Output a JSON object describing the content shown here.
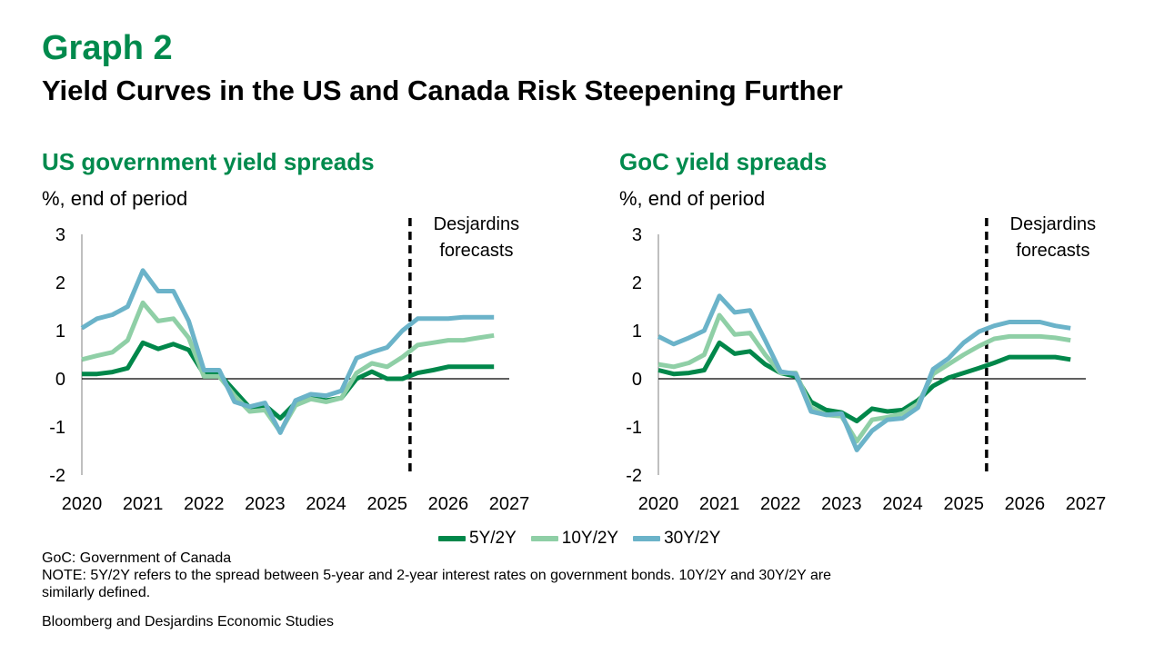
{
  "header": {
    "graph_label": "Graph 2",
    "title": "Yield Curves in the US and Canada Risk Steepening Further"
  },
  "panels": [
    {
      "title": "US government yield spreads",
      "unit": "%, end of period"
    },
    {
      "title": "GoC yield spreads",
      "unit": "%, end of period"
    }
  ],
  "legend": [
    {
      "label": "5Y/2Y",
      "color": "#00874a"
    },
    {
      "label": "10Y/2Y",
      "color": "#8fcfa6"
    },
    {
      "label": "30Y/2Y",
      "color": "#6bb3c9"
    }
  ],
  "footnotes": {
    "abbrev": "GoC: Government of Canada",
    "note": "NOTE: 5Y/2Y refers to the spread between 5-year and 2-year interest rates on government bonds. 10Y/2Y and 30Y/2Y are similarly defined.",
    "source": "Bloomberg and Desjardins Economic Studies"
  },
  "chart_data": [
    {
      "type": "line",
      "title": "US government yield spreads",
      "ylabel": "%, end of period",
      "xlim": [
        2020,
        2027
      ],
      "ylim": [
        -2,
        3
      ],
      "x_ticks": [
        "2020",
        "2021",
        "2022",
        "2023",
        "2024",
        "2025",
        "2026",
        "2027"
      ],
      "y_ticks": [
        "3",
        "2",
        "1",
        "0",
        "-1",
        "-2"
      ],
      "forecast_start": 2025.375,
      "annotation": [
        "Desjardins",
        "forecasts"
      ],
      "x": [
        2020.0,
        2020.25,
        2020.5,
        2020.75,
        2021.0,
        2021.25,
        2021.5,
        2021.75,
        2022.0,
        2022.25,
        2022.5,
        2022.75,
        2023.0,
        2023.25,
        2023.5,
        2023.75,
        2024.0,
        2024.25,
        2024.5,
        2024.75,
        2025.0,
        2025.25,
        2025.5,
        2025.75,
        2026.0,
        2026.25,
        2026.5,
        2026.75
      ],
      "series": [
        {
          "name": "5Y/2Y",
          "color": "#00874a",
          "values": [
            0.1,
            0.1,
            0.14,
            0.22,
            0.75,
            0.62,
            0.72,
            0.6,
            0.1,
            0.1,
            -0.25,
            -0.6,
            -0.55,
            -0.82,
            -0.5,
            -0.4,
            -0.45,
            -0.4,
            0.0,
            0.15,
            0.0,
            0.0,
            0.12,
            0.18,
            0.25,
            0.25,
            0.25,
            0.25
          ]
        },
        {
          "name": "10Y/2Y",
          "color": "#8fcfa6",
          "values": [
            0.4,
            0.48,
            0.55,
            0.8,
            1.58,
            1.2,
            1.25,
            0.85,
            0.05,
            0.05,
            -0.35,
            -0.68,
            -0.65,
            -1.1,
            -0.55,
            -0.42,
            -0.48,
            -0.4,
            0.12,
            0.32,
            0.25,
            0.45,
            0.7,
            0.75,
            0.8,
            0.8,
            0.85,
            0.9
          ]
        },
        {
          "name": "30Y/2Y",
          "color": "#6bb3c9",
          "values": [
            1.05,
            1.25,
            1.33,
            1.5,
            2.25,
            1.82,
            1.82,
            1.2,
            0.18,
            0.18,
            -0.48,
            -0.58,
            -0.5,
            -1.12,
            -0.45,
            -0.32,
            -0.35,
            -0.25,
            0.43,
            0.55,
            0.65,
            1.0,
            1.25,
            1.25,
            1.25,
            1.28,
            1.28,
            1.28
          ]
        }
      ]
    },
    {
      "type": "line",
      "title": "GoC yield spreads",
      "ylabel": "%, end of period",
      "xlim": [
        2020,
        2027
      ],
      "ylim": [
        -2,
        3
      ],
      "x_ticks": [
        "2020",
        "2021",
        "2022",
        "2023",
        "2024",
        "2025",
        "2026",
        "2027"
      ],
      "y_ticks": [
        "3",
        "2",
        "1",
        "0",
        "-1",
        "-2"
      ],
      "forecast_start": 2025.375,
      "annotation": [
        "Desjardins",
        "forecasts"
      ],
      "x": [
        2020.0,
        2020.25,
        2020.5,
        2020.75,
        2021.0,
        2021.25,
        2021.5,
        2021.75,
        2022.0,
        2022.25,
        2022.5,
        2022.75,
        2023.0,
        2023.25,
        2023.5,
        2023.75,
        2024.0,
        2024.25,
        2024.5,
        2024.75,
        2025.0,
        2025.25,
        2025.5,
        2025.75,
        2026.0,
        2026.25,
        2026.5,
        2026.75
      ],
      "series": [
        {
          "name": "5Y/2Y",
          "color": "#00874a",
          "values": [
            0.18,
            0.1,
            0.12,
            0.18,
            0.75,
            0.52,
            0.57,
            0.3,
            0.12,
            0.05,
            -0.48,
            -0.65,
            -0.7,
            -0.88,
            -0.62,
            -0.68,
            -0.65,
            -0.45,
            -0.15,
            0.02,
            0.12,
            0.22,
            0.33,
            0.45,
            0.45,
            0.45,
            0.45,
            0.4
          ]
        },
        {
          "name": "10Y/2Y",
          "color": "#8fcfa6",
          "values": [
            0.3,
            0.25,
            0.33,
            0.5,
            1.32,
            0.92,
            0.95,
            0.5,
            0.12,
            0.12,
            -0.6,
            -0.75,
            -0.78,
            -1.3,
            -0.85,
            -0.8,
            -0.72,
            -0.52,
            0.1,
            0.3,
            0.5,
            0.68,
            0.83,
            0.88,
            0.88,
            0.88,
            0.85,
            0.8
          ]
        },
        {
          "name": "30Y/2Y",
          "color": "#6bb3c9",
          "values": [
            0.88,
            0.72,
            0.85,
            1.0,
            1.72,
            1.38,
            1.42,
            0.8,
            0.15,
            0.1,
            -0.68,
            -0.75,
            -0.72,
            -1.48,
            -1.08,
            -0.85,
            -0.82,
            -0.6,
            0.2,
            0.42,
            0.75,
            0.98,
            1.1,
            1.18,
            1.18,
            1.18,
            1.1,
            1.05
          ]
        }
      ]
    }
  ]
}
